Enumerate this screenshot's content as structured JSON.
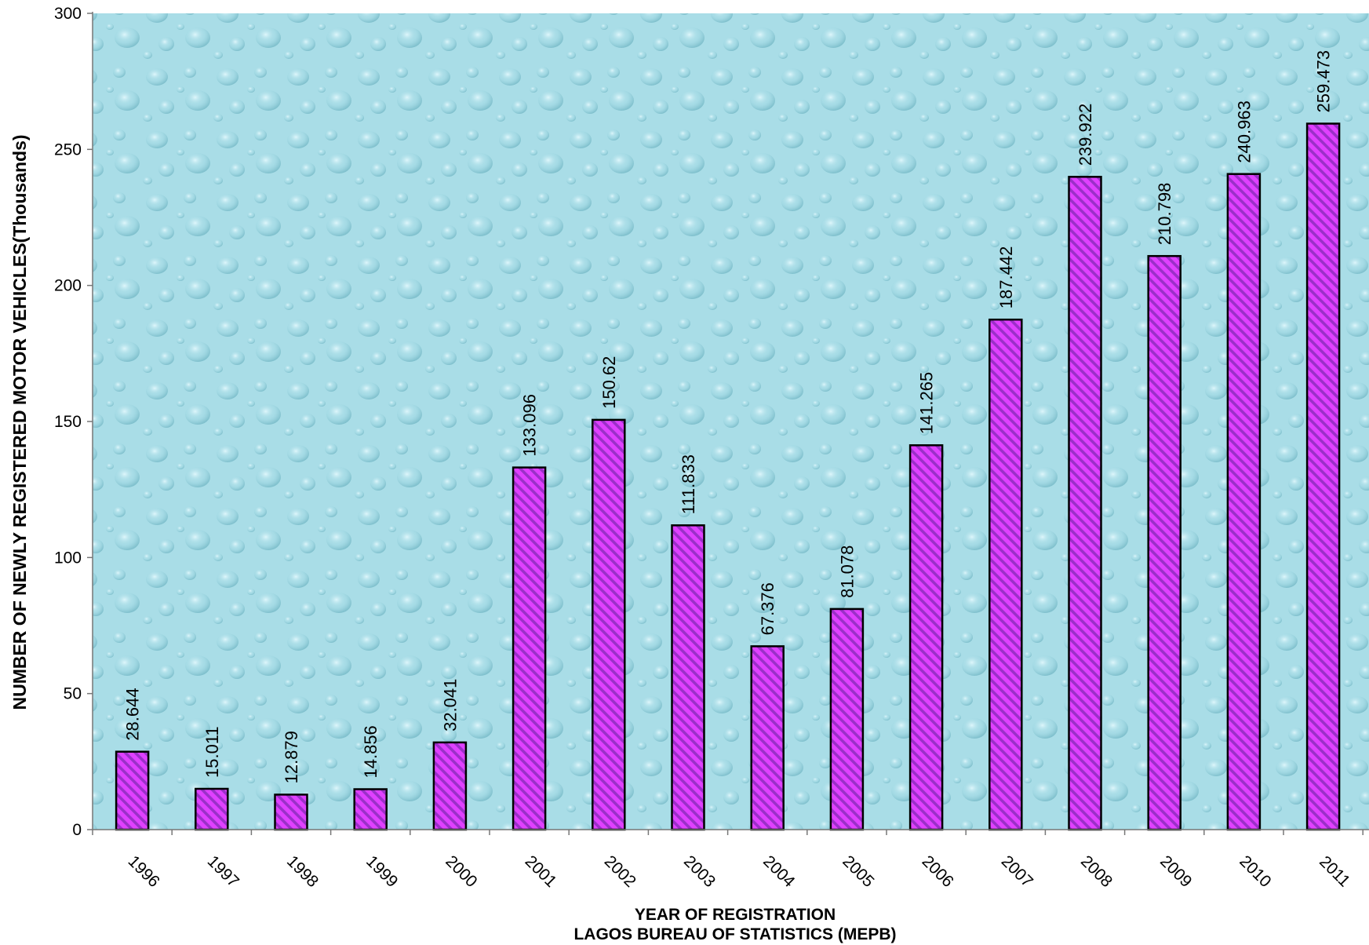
{
  "chart_data": {
    "type": "bar",
    "title": "",
    "xlabel": "YEAR OF REGISTRATION",
    "subtitle": "LAGOS BUREAU OF STATISTICS (MEPB)",
    "ylabel": "NUMBER OF NEWLY REGISTERED MOTOR VEHICLES(Thousands)",
    "ylim": [
      0,
      300
    ],
    "yticks": [
      0,
      50,
      100,
      150,
      200,
      250,
      300
    ],
    "categories": [
      "1996",
      "1997",
      "1998",
      "1999",
      "2000",
      "2001",
      "2002",
      "2003",
      "2004",
      "2005",
      "2006",
      "2007",
      "2008",
      "2009",
      "2010",
      "2011"
    ],
    "values": [
      28.644,
      15.011,
      12.879,
      14.856,
      32.041,
      133.096,
      150.62,
      111.833,
      67.376,
      81.078,
      141.265,
      187.442,
      239.922,
      210.798,
      240.963,
      259.473
    ],
    "value_labels": [
      "28.644",
      "15.011",
      "12.879",
      "14.856",
      "32.041",
      "133.096",
      "150.62",
      "111.833",
      "67.376",
      "81.078",
      "141.265",
      "187.442",
      "239.922",
      "210.798",
      "240.963",
      "259.473"
    ],
    "bar_fill": "#e040ff",
    "bar_hatch": "#9b30c8",
    "plot_background": "#a8dde6",
    "grid": false,
    "legend": "none"
  }
}
